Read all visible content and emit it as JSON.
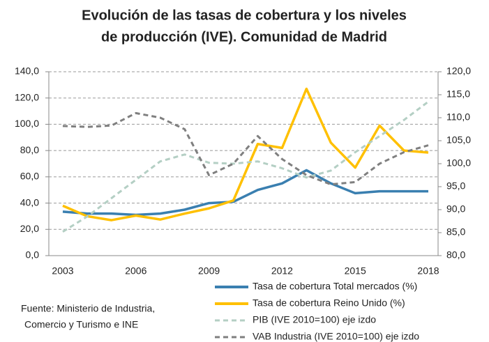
{
  "chart_data": {
    "type": "line",
    "title": [
      "Evolución de las tasas de cobertura y los niveles",
      "de producción (IVE). Comunidad de Madrid"
    ],
    "source": [
      "Fuente: Ministerio de Industria,",
      "Comercio y Turismo e INE"
    ],
    "x": [
      2003,
      2004,
      2005,
      2006,
      2007,
      2008,
      2009,
      2010,
      2011,
      2012,
      2013,
      2014,
      2015,
      2016,
      2017,
      2018
    ],
    "xlim": [
      2003,
      2018
    ],
    "xticks": [
      2003,
      2006,
      2009,
      2012,
      2015,
      2018
    ],
    "ylim": [
      0,
      140
    ],
    "yticks": [
      {
        "value": 0,
        "label": "0,0"
      },
      {
        "value": 20,
        "label": "20,0"
      },
      {
        "value": 40,
        "label": "40,0"
      },
      {
        "value": 60,
        "label": "60,0"
      },
      {
        "value": 80,
        "label": "80,0"
      },
      {
        "value": 100,
        "label": "100,0"
      },
      {
        "value": 120,
        "label": "120,0"
      },
      {
        "value": 140,
        "label": "140,0"
      }
    ],
    "y2lim": [
      80,
      120
    ],
    "y2ticks": [
      {
        "value": 80,
        "label": "80,0"
      },
      {
        "value": 85,
        "label": "85,0"
      },
      {
        "value": 90,
        "label": "90,0"
      },
      {
        "value": 95,
        "label": "95,0"
      },
      {
        "value": 100,
        "label": "100,0"
      },
      {
        "value": 105,
        "label": "105,0"
      },
      {
        "value": 110,
        "label": "110,0"
      },
      {
        "value": 115,
        "label": "115,0"
      },
      {
        "value": 120,
        "label": "120,0"
      }
    ],
    "grid": true,
    "series": [
      {
        "name": "Tasa de cobertura Total mercados (%)",
        "color": "#3a7fb0",
        "values": [
          33.5,
          32,
          32,
          31,
          32,
          35,
          40,
          41,
          50,
          55,
          65,
          55,
          47.5,
          49,
          49,
          49
        ]
      },
      {
        "name": "Tasa de cobertura Reino Unido (%)",
        "color": "#ffc000",
        "values": [
          38,
          30,
          27,
          30.5,
          27.5,
          32,
          36,
          42,
          85,
          82,
          127,
          86,
          67,
          99,
          80,
          78.5
        ]
      },
      {
        "name": "PIB (IVE 2010=100) eje izdo",
        "color": "#b4cfc4",
        "axis": "y2",
        "dashed": true,
        "values": [
          85.2,
          88.5,
          92.5,
          96.5,
          100.5,
          102,
          100.2,
          100,
          100.5,
          99,
          97,
          98.5,
          102.5,
          106,
          109.5,
          113.5
        ]
      },
      {
        "name": "VAB Industria (IVE 2010=100) eje izdo",
        "color": "#7f7f7f",
        "axis": "y2",
        "dashed": true,
        "values": [
          108.2,
          108,
          108.3,
          111,
          110,
          107.5,
          97.5,
          100,
          106,
          101,
          97.5,
          95.5,
          96,
          100,
          102.5,
          104
        ]
      }
    ]
  }
}
